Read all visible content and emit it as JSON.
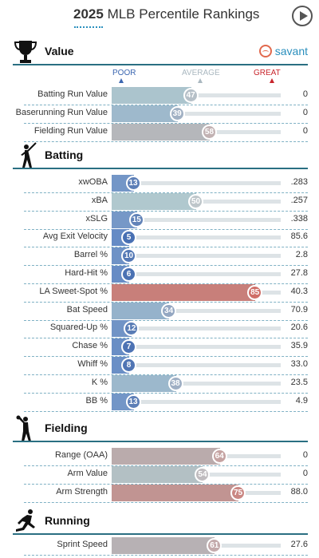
{
  "header": {
    "year": "2025",
    "title": "MLB Percentile Rankings"
  },
  "scale": {
    "poor": "POOR",
    "average": "AVERAGE",
    "great": "GREAT"
  },
  "brand": {
    "name": "savant"
  },
  "colors": {
    "poor": "#3b66b0",
    "average": "#aab8c0",
    "great": "#c8252c",
    "section_line": "#2a6f82",
    "separator": "#7fb1c4"
  },
  "sections": [
    {
      "id": "value",
      "title": "Value",
      "icon": "trophy-icon",
      "rows": [
        {
          "label": "Batting Run Value",
          "percentile": 47,
          "value": "0"
        },
        {
          "label": "Baserunning Run Value",
          "percentile": 39,
          "value": "0"
        },
        {
          "label": "Fielding Run Value",
          "percentile": 58,
          "value": "0"
        }
      ]
    },
    {
      "id": "batting",
      "title": "Batting",
      "icon": "batter-icon",
      "rows": [
        {
          "label": "xwOBA",
          "percentile": 13,
          "value": ".283"
        },
        {
          "label": "xBA",
          "percentile": 50,
          "value": ".257"
        },
        {
          "label": "xSLG",
          "percentile": 15,
          "value": ".338"
        },
        {
          "label": "Avg Exit Velocity",
          "percentile": 5,
          "value": "85.6"
        },
        {
          "label": "Barrel %",
          "percentile": 10,
          "value": "2.8"
        },
        {
          "label": "Hard-Hit %",
          "percentile": 6,
          "value": "27.8"
        },
        {
          "label": "LA Sweet-Spot %",
          "percentile": 85,
          "value": "40.3"
        },
        {
          "label": "Bat Speed",
          "percentile": 34,
          "value": "70.9"
        },
        {
          "label": "Squared-Up %",
          "percentile": 12,
          "value": "20.6"
        },
        {
          "label": "Chase %",
          "percentile": 7,
          "value": "35.9"
        },
        {
          "label": "Whiff %",
          "percentile": 8,
          "value": "33.0"
        },
        {
          "label": "K %",
          "percentile": 38,
          "value": "23.5"
        },
        {
          "label": "BB %",
          "percentile": 13,
          "value": "4.9"
        }
      ]
    },
    {
      "id": "fielding",
      "title": "Fielding",
      "icon": "fielder-icon",
      "rows": [
        {
          "label": "Range (OAA)",
          "percentile": 64,
          "value": "0"
        },
        {
          "label": "Arm Value",
          "percentile": 54,
          "value": "0"
        },
        {
          "label": "Arm Strength",
          "percentile": 75,
          "value": "88.0"
        }
      ]
    },
    {
      "id": "running",
      "title": "Running",
      "icon": "runner-icon",
      "rows": [
        {
          "label": "Sprint Speed",
          "percentile": 61,
          "value": "27.6"
        }
      ]
    }
  ]
}
